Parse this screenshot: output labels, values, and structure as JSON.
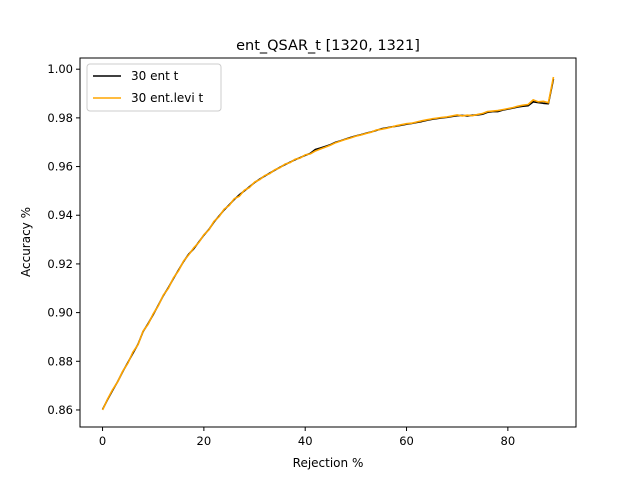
{
  "chart_data": {
    "type": "line",
    "title": "ent_QSAR_t  [1320, 1321]",
    "xlabel": "Rejection %",
    "ylabel": "Accuracy %",
    "xlim": [
      -4.45,
      93.45
    ],
    "ylim": [
      0.853,
      1.0046
    ],
    "xticks": [
      0,
      20,
      40,
      60,
      80
    ],
    "yticks": [
      0.86,
      0.88,
      0.9,
      0.92,
      0.94,
      0.96,
      0.98,
      1.0
    ],
    "xtick_labels": [
      "0",
      "20",
      "40",
      "60",
      "80"
    ],
    "ytick_labels": [
      "0.86",
      "0.88",
      "0.90",
      "0.92",
      "0.94",
      "0.96",
      "0.98",
      "1.00"
    ],
    "grid": false,
    "legend_position": "top-left",
    "series": [
      {
        "name": "30 ent t",
        "color": "#000000",
        "x": [
          0,
          1,
          2,
          3,
          4,
          5,
          6,
          7,
          8,
          9,
          10,
          11,
          12,
          13,
          14,
          15,
          16,
          17,
          18,
          19,
          20,
          21,
          22,
          23,
          24,
          25,
          26,
          27,
          28,
          29,
          30,
          31,
          32,
          33,
          34,
          35,
          36,
          37,
          38,
          39,
          40,
          41,
          42,
          43,
          44,
          45,
          46,
          47,
          48,
          49,
          50,
          51,
          52,
          53,
          54,
          55,
          56,
          57,
          58,
          59,
          60,
          61,
          62,
          63,
          64,
          65,
          66,
          67,
          68,
          69,
          70,
          71,
          72,
          73,
          74,
          75,
          76,
          77,
          78,
          79,
          80,
          81,
          82,
          83,
          84,
          85,
          86,
          87,
          88,
          89
        ],
        "y": [
          0.8602,
          0.8643,
          0.8681,
          0.8717,
          0.8758,
          0.8795,
          0.8833,
          0.887,
          0.8922,
          0.8955,
          0.8992,
          0.903,
          0.907,
          0.9103,
          0.914,
          0.9175,
          0.921,
          0.924,
          0.9262,
          0.929,
          0.9318,
          0.9342,
          0.9372,
          0.9397,
          0.9422,
          0.9443,
          0.9465,
          0.9484,
          0.95,
          0.9517,
          0.9534,
          0.9548,
          0.9561,
          0.9573,
          0.9585,
          0.9597,
          0.9608,
          0.9618,
          0.9628,
          0.9637,
          0.9646,
          0.9654,
          0.967,
          0.9676,
          0.9683,
          0.969,
          0.97,
          0.9706,
          0.9713,
          0.972,
          0.9726,
          0.9731,
          0.9737,
          0.9742,
          0.9748,
          0.9755,
          0.9759,
          0.9763,
          0.9766,
          0.977,
          0.9774,
          0.9777,
          0.9781,
          0.9785,
          0.979,
          0.9794,
          0.9797,
          0.98,
          0.9802,
          0.9806,
          0.9809,
          0.981,
          0.9808,
          0.9811,
          0.9812,
          0.9815,
          0.9823,
          0.9826,
          0.9826,
          0.9832,
          0.9836,
          0.984,
          0.9845,
          0.9848,
          0.985,
          0.9866,
          0.9863,
          0.986,
          0.9858,
          0.996
        ]
      },
      {
        "name": "30 ent.levi t",
        "color": "#ffa500",
        "x": [
          0,
          1,
          2,
          3,
          4,
          5,
          6,
          7,
          8,
          9,
          10,
          11,
          12,
          13,
          14,
          15,
          16,
          17,
          18,
          19,
          20,
          21,
          22,
          23,
          24,
          25,
          26,
          27,
          28,
          29,
          30,
          31,
          32,
          33,
          34,
          35,
          36,
          37,
          38,
          39,
          40,
          41,
          42,
          43,
          44,
          45,
          46,
          47,
          48,
          49,
          50,
          51,
          52,
          53,
          54,
          55,
          56,
          57,
          58,
          59,
          60,
          61,
          62,
          63,
          64,
          65,
          66,
          67,
          68,
          69,
          70,
          71,
          72,
          73,
          74,
          75,
          76,
          77,
          78,
          79,
          80,
          81,
          82,
          83,
          84,
          85,
          86,
          87,
          88,
          89
        ],
        "y": [
          0.86,
          0.8645,
          0.8684,
          0.8716,
          0.876,
          0.8792,
          0.8838,
          0.8868,
          0.8924,
          0.8952,
          0.8995,
          0.9028,
          0.9072,
          0.91,
          0.9143,
          0.9172,
          0.9212,
          0.9237,
          0.9266,
          0.9288,
          0.932,
          0.934,
          0.9375,
          0.9394,
          0.9425,
          0.944,
          0.9468,
          0.9478,
          0.9503,
          0.9514,
          0.9536,
          0.9546,
          0.9563,
          0.9571,
          0.9587,
          0.9595,
          0.961,
          0.9616,
          0.963,
          0.9635,
          0.9648,
          0.9652,
          0.9664,
          0.9672,
          0.968,
          0.9688,
          0.9698,
          0.9705,
          0.9712,
          0.9718,
          0.9725,
          0.973,
          0.9736,
          0.9741,
          0.975,
          0.9753,
          0.9757,
          0.9762,
          0.9768,
          0.9772,
          0.9776,
          0.9778,
          0.9783,
          0.9788,
          0.9792,
          0.9796,
          0.9799,
          0.9802,
          0.9804,
          0.9808,
          0.9812,
          0.9808,
          0.9811,
          0.9809,
          0.9814,
          0.9818,
          0.9826,
          0.9828,
          0.983,
          0.9834,
          0.9838,
          0.9842,
          0.9848,
          0.9852,
          0.9855,
          0.9874,
          0.9866,
          0.9868,
          0.9862,
          0.9968
        ]
      }
    ]
  }
}
